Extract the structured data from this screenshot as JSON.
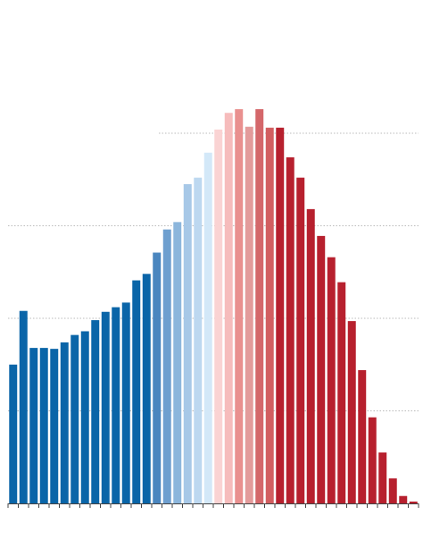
{
  "chart_data": {
    "type": "bar",
    "title": "",
    "xlabel": "",
    "ylabel": "",
    "ylim": [
      0,
      4.3
    ],
    "grid": true,
    "gridlines": [
      1,
      2,
      3,
      4
    ],
    "values": [
      1.5,
      2.08,
      1.68,
      1.68,
      1.67,
      1.74,
      1.82,
      1.86,
      1.98,
      2.07,
      2.12,
      2.17,
      2.41,
      2.48,
      2.71,
      2.96,
      3.04,
      3.45,
      3.52,
      3.79,
      4.04,
      4.22,
      4.26,
      4.07,
      4.26,
      4.06,
      4.06,
      3.74,
      3.52,
      3.18,
      2.89,
      2.66,
      2.39,
      1.97,
      1.44,
      0.93,
      0.55,
      0.27,
      0.08,
      0.02
    ],
    "colors": [
      "#0a65a8",
      "#0a65a8",
      "#0a65a8",
      "#0a65a8",
      "#0a65a8",
      "#0a65a8",
      "#0a65a8",
      "#0a65a8",
      "#0a65a8",
      "#0a65a8",
      "#0a65a8",
      "#0a65a8",
      "#0a65a8",
      "#0a65a8",
      "#4a86bf",
      "#6e9fcf",
      "#8cb6dc",
      "#a7c8e7",
      "#bdd8f0",
      "#d3e8f8",
      "#fad3d3",
      "#f6bcbc",
      "#e9908f",
      "#e39b9b",
      "#d4676a",
      "#d25e60",
      "#b7202e",
      "#b7202e",
      "#b7202e",
      "#b7202e",
      "#b7202e",
      "#b7202e",
      "#b7202e",
      "#b7202e",
      "#b7202e",
      "#b7202e",
      "#b7202e",
      "#b7202e",
      "#b7202e",
      "#b7202e"
    ],
    "baseline_color": "#444444",
    "grid_color": "#bbbbbb"
  }
}
